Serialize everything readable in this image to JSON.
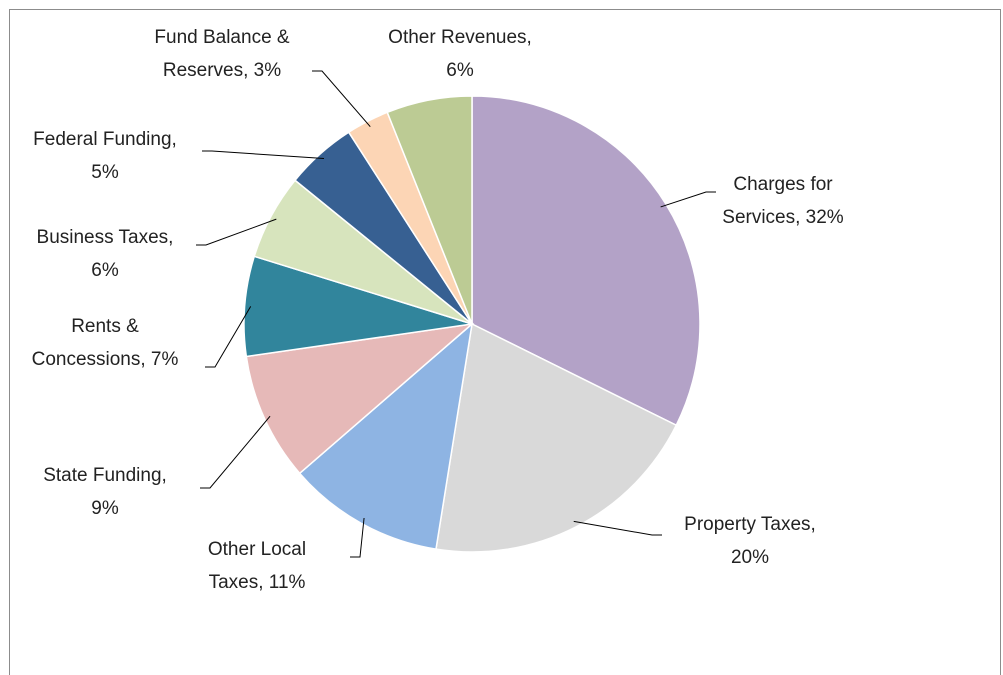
{
  "chart_data": {
    "type": "pie",
    "categories": [
      "Charges for Services",
      "Property Taxes",
      "Other Local Taxes",
      "State Funding",
      "Rents & Concessions",
      "Business Taxes",
      "Federal Funding",
      "Fund Balance & Reserves",
      "Other Revenues"
    ],
    "values": [
      32,
      20,
      11,
      9,
      7,
      6,
      5,
      3,
      6
    ],
    "value_labels": [
      [
        "Charges for",
        "Services, 32%"
      ],
      [
        "Property Taxes,",
        "20%"
      ],
      [
        "Other Local",
        "Taxes, 11%"
      ],
      [
        "State Funding,",
        "9%"
      ],
      [
        "Rents &",
        "Concessions, 7%"
      ],
      [
        "Business Taxes,",
        "6%"
      ],
      [
        "Federal Funding,",
        "5%"
      ],
      [
        "Fund Balance &",
        "Reserves, 3%"
      ],
      [
        "Other Revenues,",
        "6%"
      ]
    ],
    "colors": [
      "#b3a2c7",
      "#d9d9d9",
      "#8eb4e3",
      "#e6b9b8",
      "#31859c",
      "#d7e4bd",
      "#376092",
      "#fcd5b5",
      "#bccb94"
    ]
  }
}
